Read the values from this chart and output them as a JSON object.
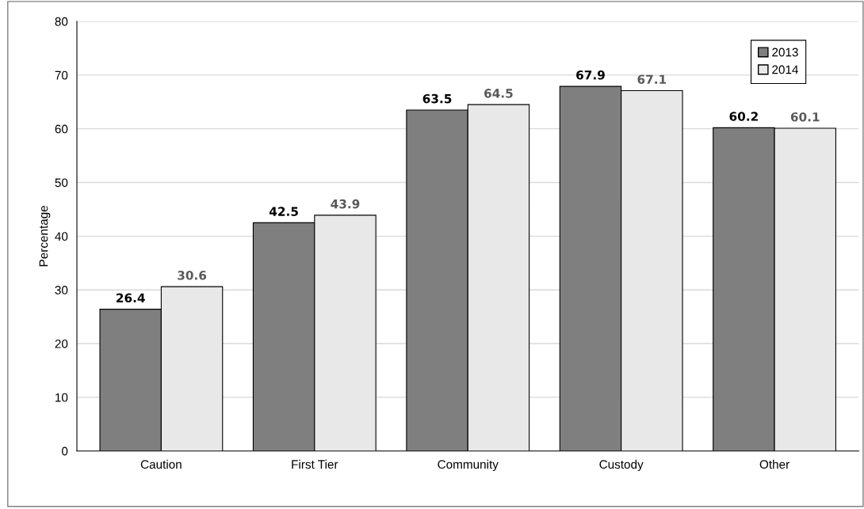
{
  "chart_data": {
    "type": "bar",
    "ylabel": "Percentage",
    "categories": [
      "Caution",
      "First Tier",
      "Community",
      "Custody",
      "Other"
    ],
    "series": [
      {
        "name": "2013",
        "color": "#7f7f7f",
        "values": [
          26.4,
          42.5,
          63.5,
          67.9,
          60.2
        ]
      },
      {
        "name": "2014",
        "color": "#e8e8e8",
        "values": [
          30.6,
          43.9,
          64.5,
          67.1,
          60.1
        ]
      }
    ],
    "ylim": [
      0,
      80
    ],
    "yticks": [
      0,
      10,
      20,
      30,
      40,
      50,
      60,
      70,
      80
    ],
    "grid": "y",
    "legend": "top right",
    "data_labels": true
  }
}
